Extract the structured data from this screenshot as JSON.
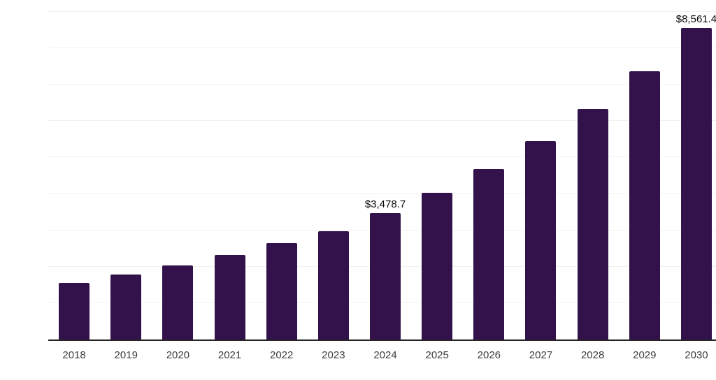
{
  "chart": {
    "background_color": "#ffffff"
  },
  "chart_data": {
    "type": "bar",
    "title": "",
    "xlabel": "",
    "ylabel": "",
    "categories": [
      "2018",
      "2019",
      "2020",
      "2021",
      "2022",
      "2023",
      "2024",
      "2025",
      "2026",
      "2027",
      "2028",
      "2029",
      "2030"
    ],
    "values": [
      1560,
      1790,
      2030,
      2320,
      2640,
      2970,
      3478.7,
      4030,
      4690,
      5450,
      6330,
      7360,
      8561.4
    ],
    "data_labels": [
      {
        "category": "2024",
        "text": "$3,478.7"
      },
      {
        "category": "2030",
        "text": "$8,561.4"
      }
    ],
    "ylim": [
      0,
      9000
    ],
    "gridline_interval": 1000,
    "grid": "horizontal-only",
    "y_tick_labels_visible": false,
    "legend_position": "none",
    "colors": {
      "bar": "#33114A",
      "axis_line": "#262626",
      "gridline": "#f2f2f2",
      "tick_label": "#3d3d3d",
      "data_label": "#0a0a0a"
    }
  }
}
